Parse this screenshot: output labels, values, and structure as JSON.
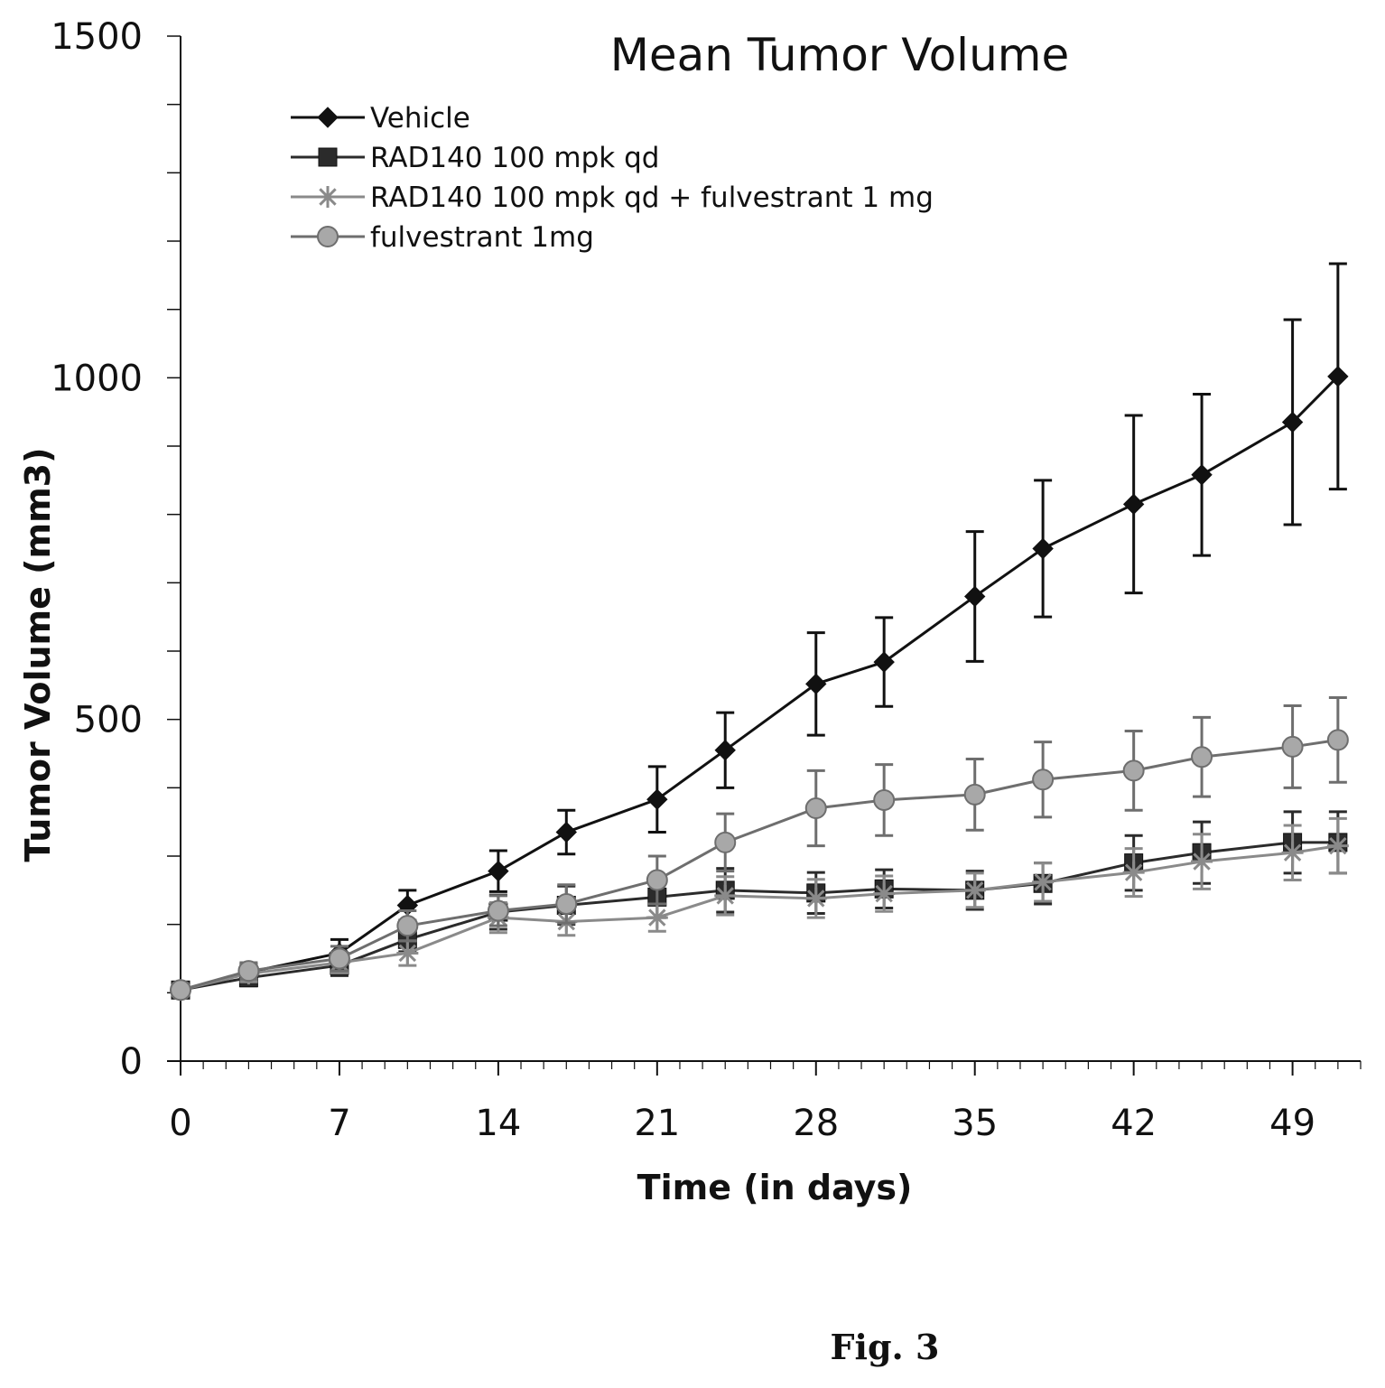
{
  "chart_data": {
    "type": "line",
    "title": "Mean Tumor Volume",
    "xlabel": "Time (in days)",
    "ylabel": "Tumor Volume (mm3)",
    "xlim": [
      0,
      52
    ],
    "ylim": [
      0,
      1500
    ],
    "x_ticks": [
      "0",
      "7",
      "14",
      "21",
      "28",
      "35",
      "42",
      "49"
    ],
    "y_ticks": [
      "0",
      "500",
      "1000",
      "1500"
    ],
    "legend_position": "top-left",
    "grid": false,
    "error_bars": true,
    "series": [
      {
        "name": "Vehicle",
        "marker": "diamond",
        "color": "#111111",
        "x": [
          0,
          3,
          7,
          10,
          14,
          17,
          21,
          24,
          28,
          31,
          35,
          38,
          42,
          45,
          49,
          51
        ],
        "y": [
          104,
          130,
          158,
          228,
          278,
          335,
          383,
          455,
          552,
          584,
          680,
          750,
          815,
          858,
          935,
          1002
        ],
        "err": [
          8,
          12,
          20,
          22,
          30,
          32,
          48,
          55,
          75,
          65,
          95,
          100,
          130,
          118,
          150,
          165
        ]
      },
      {
        "name": "RAD140 100 mpk qd",
        "marker": "square",
        "color": "#2b2b2b",
        "x": [
          0,
          3,
          7,
          10,
          14,
          17,
          21,
          24,
          28,
          31,
          35,
          38,
          42,
          45,
          49,
          51
        ],
        "y": [
          104,
          122,
          140,
          178,
          218,
          228,
          240,
          250,
          246,
          252,
          250,
          260,
          290,
          305,
          320,
          320
        ],
        "err": [
          8,
          12,
          15,
          18,
          25,
          28,
          30,
          32,
          30,
          28,
          28,
          30,
          40,
          45,
          45,
          45
        ]
      },
      {
        "name": "RAD140 100 mpk qd + fulvestrant 1 mg",
        "marker": "asterisk",
        "color": "#8a8a8a",
        "x": [
          0,
          3,
          7,
          10,
          14,
          17,
          21,
          24,
          28,
          31,
          35,
          38,
          42,
          45,
          49,
          51
        ],
        "y": [
          104,
          128,
          144,
          158,
          210,
          204,
          210,
          242,
          238,
          245,
          250,
          262,
          276,
          292,
          305,
          315
        ],
        "err": [
          8,
          12,
          15,
          18,
          22,
          20,
          20,
          28,
          28,
          26,
          25,
          28,
          35,
          40,
          40,
          40
        ]
      },
      {
        "name": "fulvestrant 1mg",
        "marker": "circle",
        "color": "#6e6e6e",
        "x": [
          0,
          3,
          7,
          10,
          14,
          17,
          21,
          24,
          28,
          31,
          35,
          38,
          42,
          45,
          49,
          51
        ],
        "y": [
          104,
          132,
          150,
          198,
          220,
          230,
          265,
          320,
          370,
          382,
          390,
          412,
          425,
          445,
          460,
          470
        ],
        "err": [
          8,
          12,
          18,
          22,
          22,
          28,
          35,
          42,
          55,
          52,
          52,
          55,
          58,
          58,
          60,
          62
        ]
      }
    ]
  },
  "caption": "Fig. 3"
}
